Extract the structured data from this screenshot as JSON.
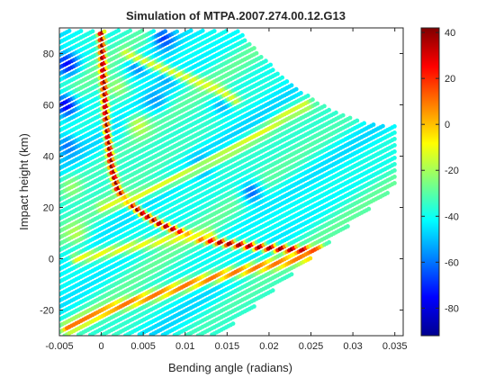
{
  "chart_data": {
    "type": "scatter",
    "title": "Simulation of MTPA.2007.274.00.12.G13",
    "xlabel": "Bending angle (radians)",
    "ylabel": "Impact height (km)",
    "xlim": [
      -0.005,
      0.036
    ],
    "ylim": [
      -30,
      90
    ],
    "xticks": [
      -0.005,
      0,
      0.005,
      0.01,
      0.015,
      0.02,
      0.025,
      0.03,
      0.035
    ],
    "xtick_labels": [
      "-0.005",
      "0",
      "0.005",
      "0.01",
      "0.015",
      "0.02",
      "0.025",
      "0.03",
      "0.035"
    ],
    "yticks": [
      -20,
      0,
      20,
      40,
      60,
      80
    ],
    "ytick_labels": [
      "-20",
      "0",
      "20",
      "40",
      "60",
      "80"
    ],
    "colorbar": {
      "range": [
        -92,
        42
      ],
      "ticks": [
        40,
        20,
        0,
        -20,
        -40,
        -60,
        -80
      ],
      "tick_labels": [
        "40",
        "20",
        "0",
        "-20",
        "-40",
        "-60",
        "-80"
      ],
      "colormap": "jet"
    },
    "grid": false,
    "background_value": -38,
    "ridges": [
      {
        "value": 40,
        "points": [
          [
            0.0,
            88
          ],
          [
            0.0003,
            70
          ],
          [
            0.0007,
            50
          ],
          [
            0.0013,
            35
          ],
          [
            0.002,
            27
          ],
          [
            0.0032,
            22
          ],
          [
            0.0048,
            18
          ],
          [
            0.0068,
            14
          ],
          [
            0.009,
            11
          ],
          [
            0.0115,
            8
          ],
          [
            0.015,
            6
          ],
          [
            0.019,
            4.5
          ],
          [
            0.0235,
            3.5
          ],
          [
            0.026,
            3.2
          ]
        ]
      },
      {
        "value": 10,
        "points": [
          [
            0.026,
            3.2
          ],
          [
            0.0245,
            1
          ],
          [
            0.022,
            -1
          ],
          [
            0.019,
            -3
          ],
          [
            0.0155,
            -5.5
          ],
          [
            0.012,
            -8.5
          ],
          [
            0.0085,
            -12
          ],
          [
            0.005,
            -15.5
          ],
          [
            0.0015,
            -19
          ],
          [
            -0.0015,
            -23
          ],
          [
            -0.004,
            -27
          ]
        ]
      },
      {
        "value": -12,
        "points": [
          [
            0.0002,
            20
          ],
          [
            0.004,
            24
          ],
          [
            0.008,
            30
          ],
          [
            0.012,
            36
          ],
          [
            0.016,
            43
          ],
          [
            0.0195,
            50
          ],
          [
            0.022,
            56
          ],
          [
            0.0245,
            60
          ]
        ]
      },
      {
        "value": -10,
        "points": [
          [
            -0.003,
            0
          ],
          [
            0.0,
            2
          ],
          [
            0.004,
            5
          ],
          [
            0.009,
            8
          ],
          [
            0.013,
            9.5
          ]
        ]
      },
      {
        "value": 15,
        "points": [
          [
            0.0175,
            -29
          ],
          [
            0.02,
            -24
          ],
          [
            0.023,
            -17
          ],
          [
            0.0255,
            -10
          ]
        ]
      },
      {
        "value": -12,
        "points": [
          [
            0.003,
            80
          ],
          [
            0.006,
            76
          ],
          [
            0.01,
            71
          ],
          [
            0.014,
            66
          ],
          [
            0.016,
            62
          ]
        ]
      }
    ],
    "patches": [
      {
        "x": -0.004,
        "y": 76,
        "value": -75
      },
      {
        "x": 0.0075,
        "y": 86,
        "value": -68
      },
      {
        "x": -0.0042,
        "y": 60,
        "value": -78
      },
      {
        "x": -0.004,
        "y": 44,
        "value": -60
      },
      {
        "x": 0.0045,
        "y": 76,
        "value": -62
      },
      {
        "x": 0.008,
        "y": 72,
        "value": -58
      },
      {
        "x": 0.012,
        "y": 36,
        "value": -60
      },
      {
        "x": 0.018,
        "y": 26,
        "value": -62
      },
      {
        "x": 0.0145,
        "y": 60,
        "value": -52
      },
      {
        "x": 0.0065,
        "y": 62,
        "value": -55
      },
      {
        "x": -0.003,
        "y": 10,
        "value": -18
      },
      {
        "x": -0.0035,
        "y": 28,
        "value": -22
      },
      {
        "x": 0.0045,
        "y": 52,
        "value": -15
      },
      {
        "x": 0.002,
        "y": 67,
        "value": -20
      }
    ]
  }
}
